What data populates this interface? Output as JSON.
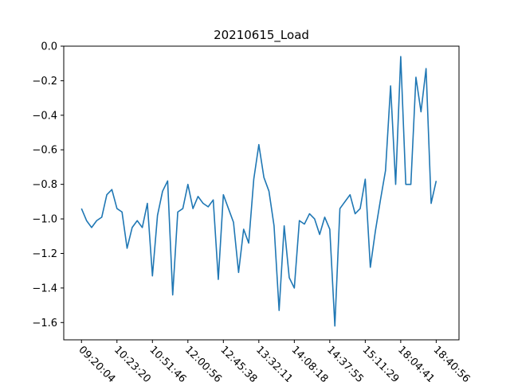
{
  "chart_data": {
    "type": "line",
    "title": "20210615_Load",
    "xlabel": "",
    "ylabel": "",
    "ylim": [
      -1.7,
      0.0
    ],
    "yticks": [
      0.0,
      -0.2,
      -0.4,
      -0.6,
      -0.8,
      -1.0,
      -1.2,
      -1.4,
      -1.6
    ],
    "ytick_labels": [
      "0.0",
      "−0.2",
      "−0.4",
      "−0.6",
      "−0.8",
      "−1.0",
      "−1.2",
      "−1.4",
      "−1.6"
    ],
    "xlim": [
      -3.5,
      74.5
    ],
    "xticks": [
      0,
      7,
      14,
      21,
      28,
      35,
      42,
      49,
      56,
      63,
      70
    ],
    "xtick_labels": [
      "09:20:04",
      "10:23:20",
      "10:51:46",
      "12:00:56",
      "12:45:38",
      "13:32:11",
      "14:08:18",
      "14:37:55",
      "15:11:29",
      "18:04:41",
      "18:40:56"
    ],
    "xtick_rotation": -45,
    "grid": false,
    "series": [
      {
        "color": "#1f77b4",
        "values": [
          -0.94,
          -1.01,
          -1.05,
          -1.01,
          -0.99,
          -0.86,
          -0.83,
          -0.94,
          -0.96,
          -1.17,
          -1.05,
          -1.01,
          -1.05,
          -0.91,
          -1.33,
          -0.98,
          -0.84,
          -0.78,
          -1.44,
          -0.96,
          -0.94,
          -0.8,
          -0.94,
          -0.87,
          -0.91,
          -0.93,
          -0.89,
          -1.35,
          -0.86,
          -0.94,
          -1.02,
          -1.31,
          -1.06,
          -1.14,
          -0.77,
          -0.57,
          -0.76,
          -0.84,
          -1.04,
          -1.53,
          -1.04,
          -1.34,
          -1.4,
          -1.01,
          -1.03,
          -0.97,
          -1.0,
          -1.09,
          -0.99,
          -1.06,
          -1.62,
          -0.94,
          -0.9,
          -0.86,
          -0.97,
          -0.94,
          -0.77,
          -1.28,
          -1.07,
          -0.89,
          -0.72,
          -0.23,
          -0.8,
          -0.06,
          -0.8,
          -0.8,
          -0.18,
          -0.38,
          -0.13,
          -0.91,
          -0.78
        ]
      }
    ]
  }
}
